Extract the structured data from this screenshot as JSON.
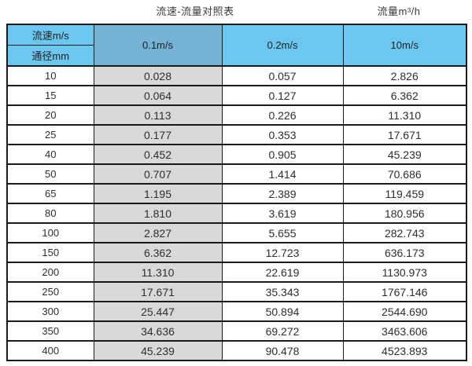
{
  "titles": {
    "left": "流速-流量对照表",
    "right": "流量m³/h"
  },
  "colors": {
    "header_blue": "#6CC7F0",
    "header_muted_blue": "#74B3D6",
    "column_gray": "#D9D9D9",
    "border": "#1A1A1A"
  },
  "chart_data": {
    "type": "table",
    "title": "流速-流量对照表",
    "unit_label": "流量m³/h",
    "row_header_labels": [
      "流速m/s",
      "通径mm"
    ],
    "columns": [
      "0.1m/s",
      "0.2m/s",
      "10m/s"
    ],
    "rows": [
      {
        "diameter": "10",
        "values": [
          "0.028",
          "0.057",
          "2.826"
        ]
      },
      {
        "diameter": "15",
        "values": [
          "0.064",
          "0.127",
          "6.362"
        ]
      },
      {
        "diameter": "20",
        "values": [
          "0.113",
          "0.226",
          "11.310"
        ]
      },
      {
        "diameter": "25",
        "values": [
          "0.177",
          "0.353",
          "17.671"
        ]
      },
      {
        "diameter": "40",
        "values": [
          "0.452",
          "0.905",
          "45.239"
        ]
      },
      {
        "diameter": "50",
        "values": [
          "0.707",
          "1.414",
          "70.686"
        ]
      },
      {
        "diameter": "65",
        "values": [
          "1.195",
          "2.389",
          "119.459"
        ]
      },
      {
        "diameter": "80",
        "values": [
          "1.810",
          "3.619",
          "180.956"
        ]
      },
      {
        "diameter": "100",
        "values": [
          "2.827",
          "5.655",
          "282.743"
        ]
      },
      {
        "diameter": "150",
        "values": [
          "6.362",
          "12.723",
          "636.173"
        ]
      },
      {
        "diameter": "200",
        "values": [
          "11.310",
          "22.619",
          "1130.973"
        ]
      },
      {
        "diameter": "250",
        "values": [
          "17.671",
          "35.343",
          "1767.146"
        ]
      },
      {
        "diameter": "300",
        "values": [
          "25.447",
          "50.894",
          "2544.690"
        ]
      },
      {
        "diameter": "350",
        "values": [
          "34.636",
          "69.272",
          "3463.606"
        ]
      },
      {
        "diameter": "400",
        "values": [
          "45.239",
          "90.478",
          "4523.893"
        ]
      }
    ]
  }
}
